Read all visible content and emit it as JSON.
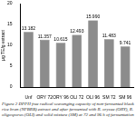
{
  "chart_data": {
    "type": "bar",
    "y_label": "μg TE/g extract",
    "categories": [
      "Unf",
      "ORY 72",
      "ORY 96",
      "OLI 72",
      "OLI 96",
      "SM 72",
      "SM 96"
    ],
    "values": [
      13.182,
      11.357,
      10.615,
      12.493,
      15.99,
      11.483,
      9.741
    ],
    "value_labels": [
      "13.182",
      "11.357",
      "10.615",
      "12.493",
      "15.990",
      "11.483",
      "9.741"
    ],
    "data_labels": true,
    "color": "#8c8c8c",
    "ylim": [
      0,
      20
    ],
    "yticks": [
      0,
      5,
      10,
      15,
      20
    ],
    "grid": false,
    "caption": "Figure 2 DPPH free radical scavenging capacity of non-fermented black rice bran (NFBRB) extract and after fermented with R. oryzae (ORY), R. oligosporus (OLI) and solid mixture (SM) at 72 and 96 h of fermentation"
  }
}
